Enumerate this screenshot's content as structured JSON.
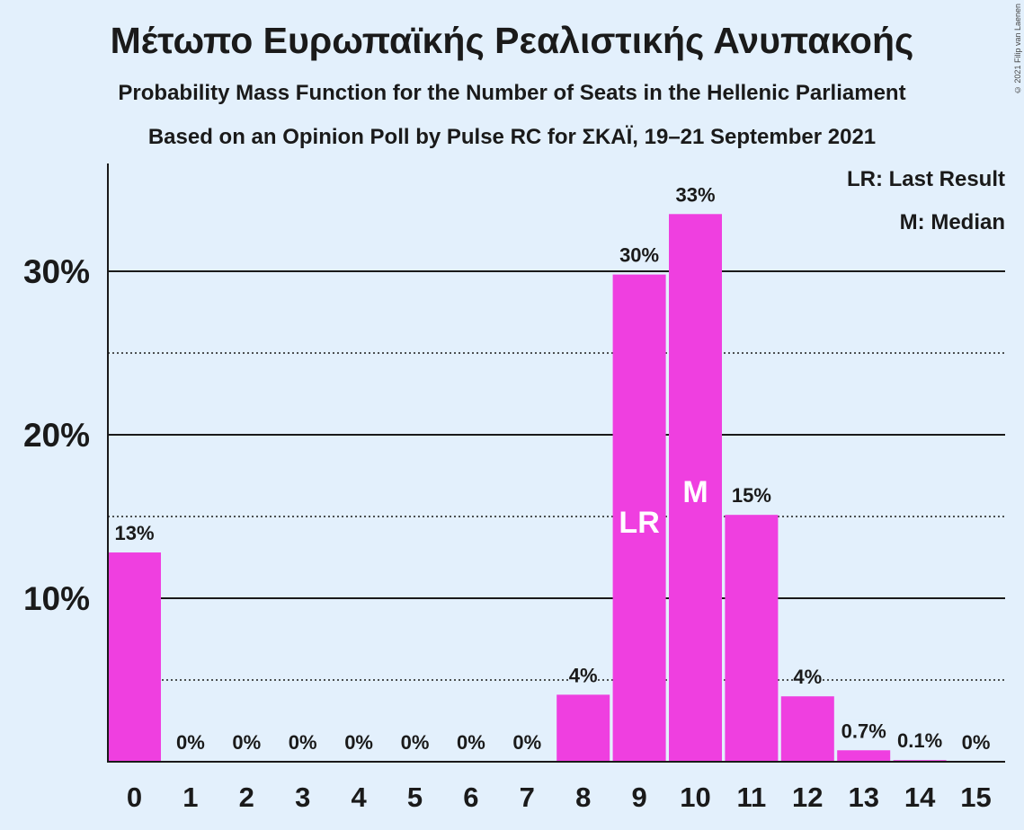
{
  "header": {
    "title": "Μέτωπο Ευρωπαϊκής Ρεαλιστικής Ανυπακοής",
    "subtitle1": "Probability Mass Function for the Number of Seats in the Hellenic Parliament",
    "subtitle2": "Based on an Opinion Poll by Pulse RC for ΣΚΑΪ, 19–21 September 2021",
    "copyright": "© 2021 Filip van Laenen"
  },
  "legend": {
    "last_result": "LR: Last Result",
    "median": "M: Median"
  },
  "chart_data": {
    "type": "bar",
    "categories": [
      "0",
      "1",
      "2",
      "3",
      "4",
      "5",
      "6",
      "7",
      "8",
      "9",
      "10",
      "11",
      "12",
      "13",
      "14",
      "15"
    ],
    "values": [
      12.8,
      0,
      0,
      0,
      0,
      0,
      0,
      0,
      4.1,
      29.8,
      33.5,
      15.1,
      4.0,
      0.7,
      0.1,
      0
    ],
    "data_labels": [
      "13%",
      "0%",
      "0%",
      "0%",
      "0%",
      "0%",
      "0%",
      "0%",
      "4%",
      "30%",
      "33%",
      "15%",
      "4%",
      "0.7%",
      "0.1%",
      "0%"
    ],
    "ytick_values": [
      10,
      20,
      30
    ],
    "yticks": [
      "10%",
      "20%",
      "30%"
    ],
    "minor_gridlines": [
      5,
      15,
      25
    ],
    "ylim": [
      0,
      36.5
    ],
    "last_result_category": "9",
    "median_category": "10",
    "last_result_marker": "LR",
    "median_marker": "M",
    "bar_color": "#ef3fe0",
    "background": "#e3f0fc",
    "legend_position": "top-right"
  }
}
